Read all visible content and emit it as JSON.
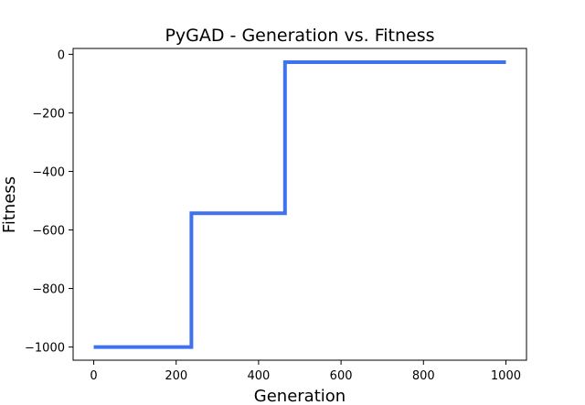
{
  "chart_data": {
    "type": "line",
    "title": "PyGAD - Generation vs. Fitness",
    "xlabel": "Generation",
    "ylabel": "Fitness",
    "xlim": [
      -50,
      1050
    ],
    "ylim": [
      -1045,
      20
    ],
    "xticks": [
      0,
      200,
      400,
      600,
      800,
      1000
    ],
    "yticks": [
      0,
      -200,
      -400,
      -600,
      -800,
      -1000
    ],
    "grid": false,
    "line_color": "#4172ee",
    "series": [
      {
        "name": "",
        "x": [
          0,
          237,
          237,
          464,
          464,
          1000
        ],
        "y": [
          -1000,
          -1000,
          -543,
          -543,
          -27,
          -27
        ]
      }
    ]
  }
}
